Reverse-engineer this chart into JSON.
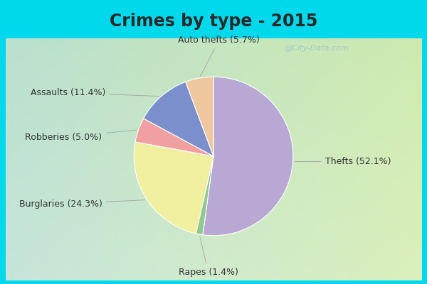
{
  "title": "Crimes by type - 2015",
  "slices": [
    {
      "label": "Thefts",
      "pct": 52.1,
      "color": "#b8a9d4"
    },
    {
      "label": "Rapes",
      "pct": 1.4,
      "color": "#90c990"
    },
    {
      "label": "Burglaries",
      "pct": 24.3,
      "color": "#f0f0a0"
    },
    {
      "label": "Robberies",
      "pct": 5.0,
      "color": "#f0a0a0"
    },
    {
      "label": "Assaults",
      "pct": 11.4,
      "color": "#7b8fcc"
    },
    {
      "label": "Auto thefts",
      "pct": 5.7,
      "color": "#f0c8a0"
    }
  ],
  "cyan_border": "#00d8ec",
  "bg_color_tl": "#bde8dc",
  "bg_color_br": "#d8ecd4",
  "title_fontsize": 17,
  "label_fontsize": 9,
  "watermark": "@City-Data.com",
  "border_thickness": 8
}
